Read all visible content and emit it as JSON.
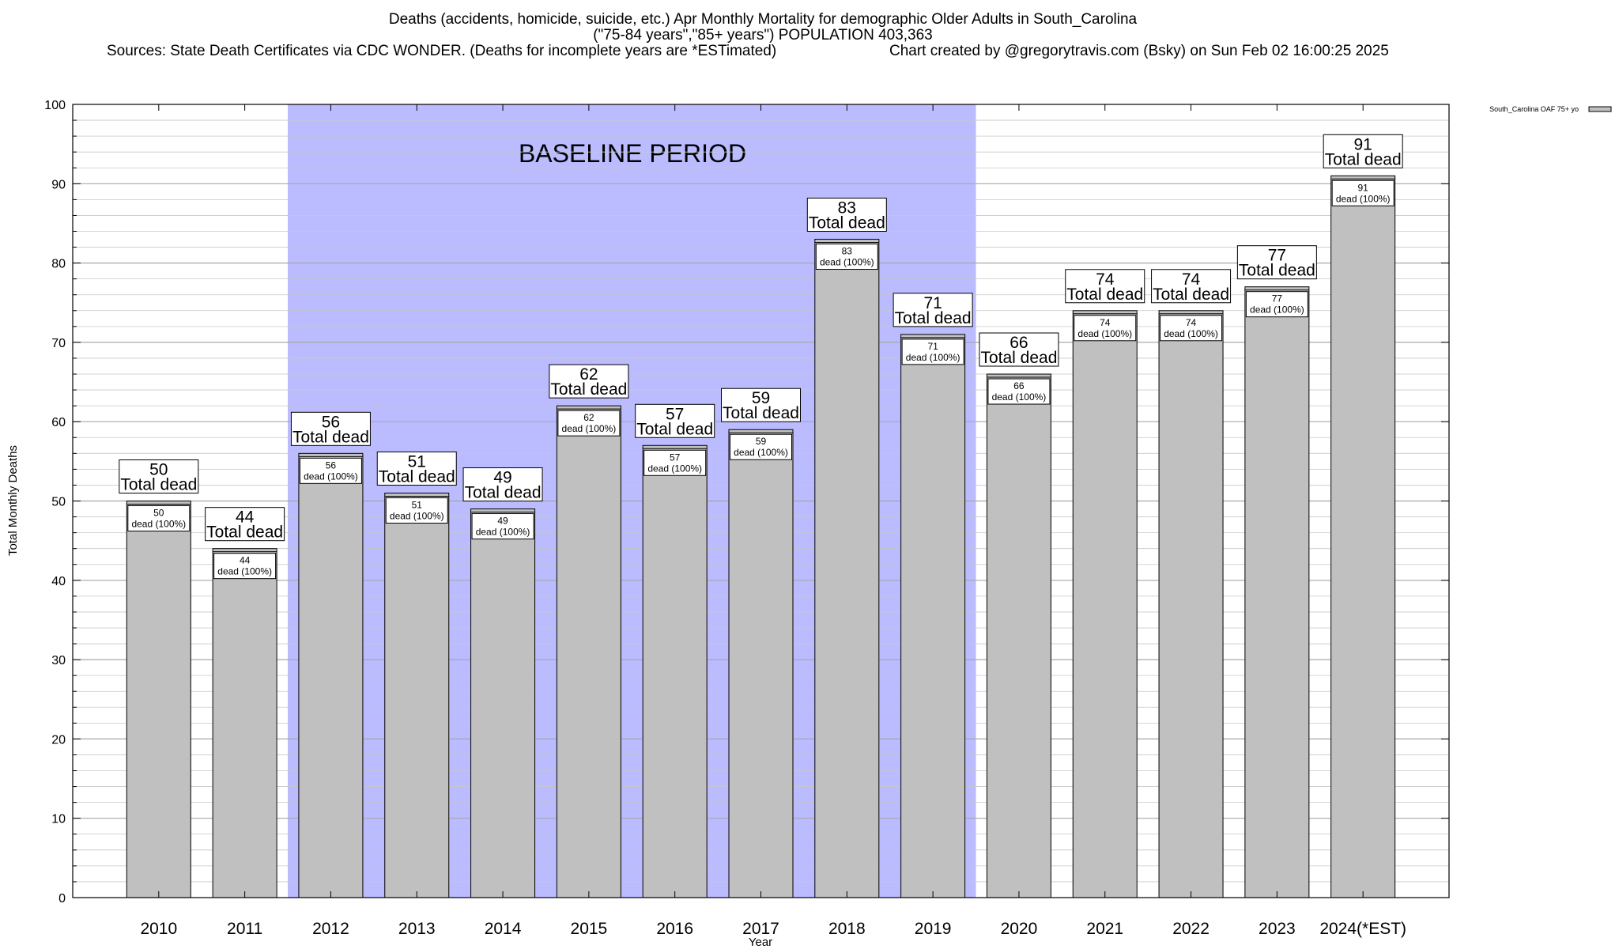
{
  "chart_data": {
    "type": "bar",
    "title_lines": [
      "Deaths (accidents, homicide, suicide, etc.) Apr Monthly Mortality for demographic Older Adults in South_Carolina",
      "(\"75-84 years\",\"85+ years\") POPULATION 403,363"
    ],
    "sources": "Sources: State Death Certificates via CDC WONDER. (Deaths for incomplete years are *ESTimated)",
    "credit": "Chart created by @gregorytravis.com (Bsky) on Sun Feb 02 16:00:25 2025",
    "xlabel": "Year",
    "ylabel": "Total Monthly Deaths",
    "ylim": [
      0,
      100
    ],
    "yticks": [
      "0",
      "10",
      "20",
      "30",
      "40",
      "50",
      "60",
      "70",
      "80",
      "90",
      "100"
    ],
    "grid": true,
    "categories": [
      "2010",
      "2011",
      "2012",
      "2013",
      "2014",
      "2015",
      "2016",
      "2017",
      "2018",
      "2019",
      "2020",
      "2021",
      "2022",
      "2023",
      "2024(*EST)"
    ],
    "series": [
      {
        "name": "South_Carolina OAF 75+ yo",
        "values": [
          50,
          44,
          56,
          51,
          49,
          62,
          57,
          59,
          83,
          71,
          66,
          74,
          74,
          77,
          91
        ],
        "color": "#c0c0c0"
      }
    ],
    "bar_labels_total": "Total dead",
    "bar_labels_inner": "dead (100%)",
    "baseline_period": {
      "label": "BASELINE PERIOD",
      "start": "2012",
      "end": "2019",
      "color": "#bbbbff"
    },
    "legend_position": "top-right"
  }
}
